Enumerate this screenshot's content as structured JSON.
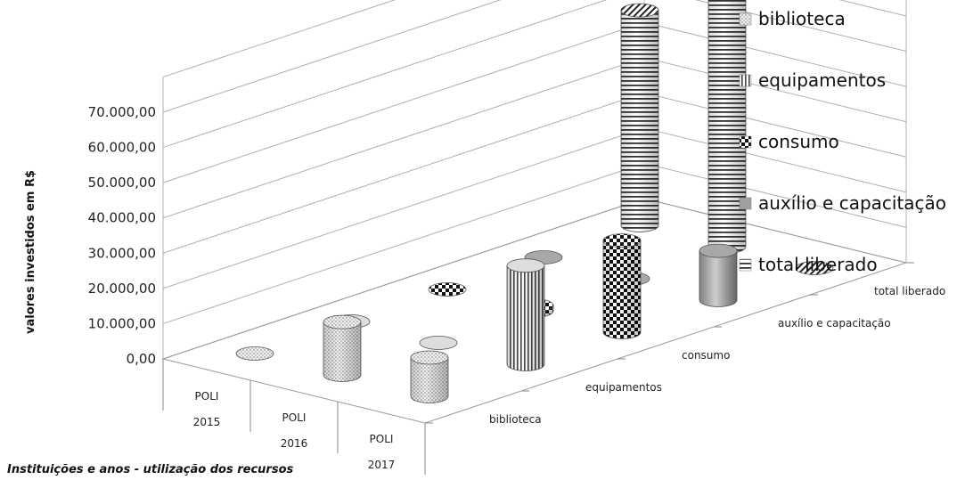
{
  "chart_data": {
    "type": "3d-cylinder-bar",
    "xlabel": "Instituições e anos - utilização dos recursos",
    "ylabel": "valores investidos em R$",
    "y_ticks": [
      "0,00",
      "10.000,00",
      "20.000,00",
      "30.000,00",
      "40.000,00",
      "50.000,00",
      "60.000,00",
      "70.000,00"
    ],
    "ylim": [
      0,
      80000
    ],
    "grid": true,
    "legend_position": "right",
    "categories": [
      {
        "line1": "POLI",
        "line2": "2015"
      },
      {
        "line1": "POLI",
        "line2": "2016"
      },
      {
        "line1": "POLI",
        "line2": "2017"
      }
    ],
    "series": [
      {
        "name": "biblioteca",
        "values": [
          0,
          15000,
          11000
        ]
      },
      {
        "name": "equipamentos",
        "values": [
          0,
          0,
          28000
        ]
      },
      {
        "name": "consumo",
        "values": [
          0,
          1500,
          26000
        ]
      },
      {
        "name": "auxílio e capacitação",
        "values": [
          0,
          0,
          14000
        ]
      },
      {
        "name": "total liberado",
        "values": [
          61000,
          78000,
          0
        ]
      }
    ]
  }
}
